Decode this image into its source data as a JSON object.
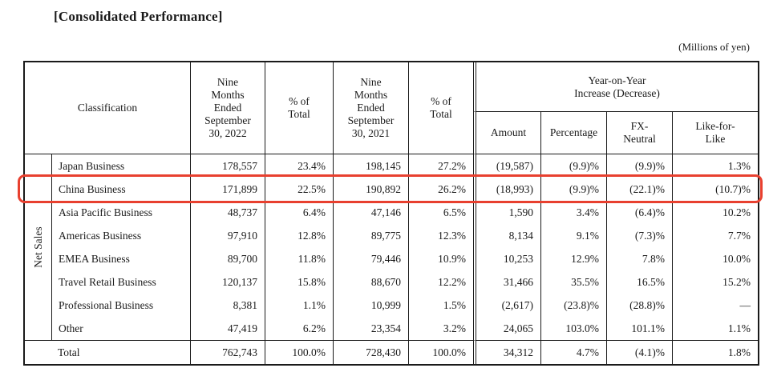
{
  "title": "[Consolidated Performance]",
  "unit_note": "(Millions of yen)",
  "highlight_color": "#e8402f",
  "table": {
    "headers": {
      "classification": "Classification",
      "period_2022": "Nine\nMonths\nEnded\nSeptember\n30, 2022",
      "pct_total_2022": "% of\nTotal",
      "period_2021": "Nine\nMonths\nEnded\nSeptember\n30, 2021",
      "pct_total_2021": "% of\nTotal",
      "yoy_group": "Year-on-Year\nIncrease (Decrease)",
      "amount": "Amount",
      "percentage": "Percentage",
      "fx_neutral": "FX-\nNeutral",
      "like_for_like": "Like-for-\nLike"
    },
    "row_group_label": "Net Sales",
    "rows": [
      {
        "label": "Japan Business",
        "v2022": "178,557",
        "p2022": "23.4%",
        "v2021": "198,145",
        "p2021": "27.2%",
        "amount": "(19,587)",
        "percentage": "(9.9)%",
        "fx": "(9.9)%",
        "lfl": "1.3%",
        "highlighted": false
      },
      {
        "label": "China Business",
        "v2022": "171,899",
        "p2022": "22.5%",
        "v2021": "190,892",
        "p2021": "26.2%",
        "amount": "(18,993)",
        "percentage": "(9.9)%",
        "fx": "(22.1)%",
        "lfl": "(10.7)%",
        "highlighted": true
      },
      {
        "label": "Asia Pacific Business",
        "v2022": "48,737",
        "p2022": "6.4%",
        "v2021": "47,146",
        "p2021": "6.5%",
        "amount": "1,590",
        "percentage": "3.4%",
        "fx": "(6.4)%",
        "lfl": "10.2%",
        "highlighted": false
      },
      {
        "label": "Americas Business",
        "v2022": "97,910",
        "p2022": "12.8%",
        "v2021": "89,775",
        "p2021": "12.3%",
        "amount": "8,134",
        "percentage": "9.1%",
        "fx": "(7.3)%",
        "lfl": "7.7%",
        "highlighted": false
      },
      {
        "label": "EMEA Business",
        "v2022": "89,700",
        "p2022": "11.8%",
        "v2021": "79,446",
        "p2021": "10.9%",
        "amount": "10,253",
        "percentage": "12.9%",
        "fx": "7.8%",
        "lfl": "10.0%",
        "highlighted": false
      },
      {
        "label": "Travel Retail Business",
        "v2022": "120,137",
        "p2022": "15.8%",
        "v2021": "88,670",
        "p2021": "12.2%",
        "amount": "31,466",
        "percentage": "35.5%",
        "fx": "16.5%",
        "lfl": "15.2%",
        "highlighted": false
      },
      {
        "label": "Professional Business",
        "v2022": "8,381",
        "p2022": "1.1%",
        "v2021": "10,999",
        "p2021": "1.5%",
        "amount": "(2,617)",
        "percentage": "(23.8)%",
        "fx": "(28.8)%",
        "lfl": "—",
        "highlighted": false
      },
      {
        "label": "Other",
        "v2022": "47,419",
        "p2022": "6.2%",
        "v2021": "23,354",
        "p2021": "3.2%",
        "amount": "24,065",
        "percentage": "103.0%",
        "fx": "101.1%",
        "lfl": "1.1%",
        "highlighted": false
      }
    ],
    "total_row": {
      "label": "Total",
      "v2022": "762,743",
      "p2022": "100.0%",
      "v2021": "728,430",
      "p2021": "100.0%",
      "amount": "34,312",
      "percentage": "4.7%",
      "fx": "(4.1)%",
      "lfl": "1.8%"
    }
  }
}
